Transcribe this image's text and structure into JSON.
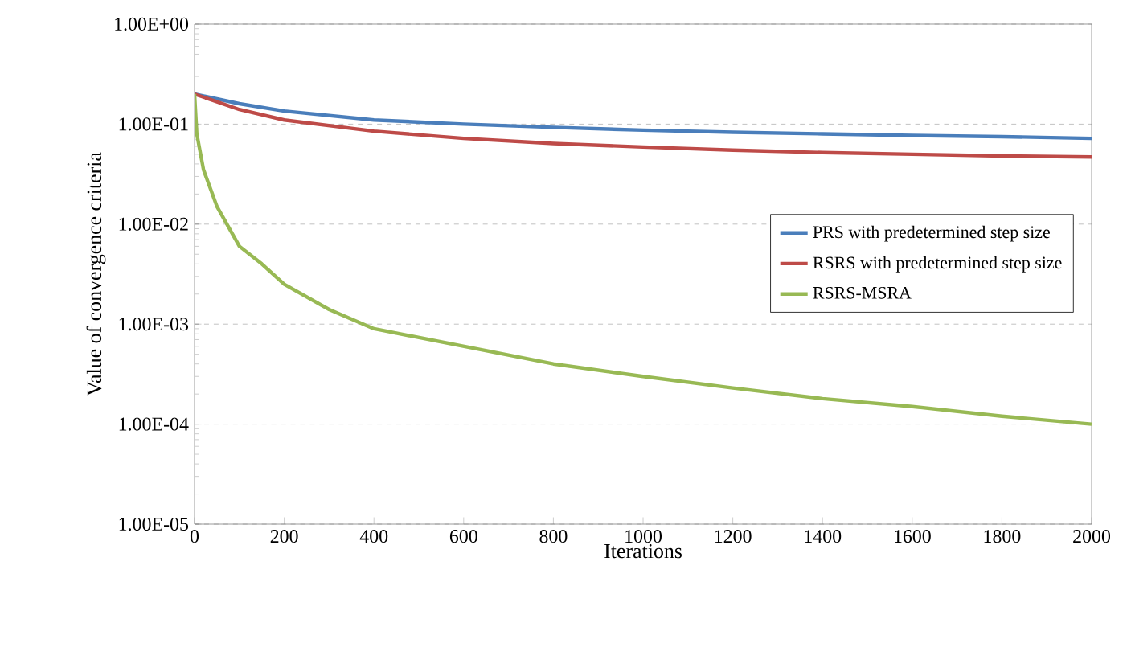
{
  "chart_data": {
    "type": "line",
    "xlabel": "Iterations",
    "ylabel": "Value of convergence criteria",
    "log": "y",
    "grid": "y",
    "legend": "right",
    "marker": "none",
    "line_style": "solid",
    "xlim": [
      0,
      2000
    ],
    "ylim": [
      1e-05,
      1
    ],
    "xticks": [
      0,
      200,
      400,
      600,
      800,
      1000,
      1200,
      1400,
      1600,
      1800,
      2000
    ],
    "yticks": [
      {
        "value": 1e-05,
        "label": "1.00E-05"
      },
      {
        "value": 0.0001,
        "label": "1.00E-04"
      },
      {
        "value": 0.001,
        "label": "1.00E-03"
      },
      {
        "value": 0.01,
        "label": "1.00E-02"
      },
      {
        "value": 0.1,
        "label": "1.00E-01"
      },
      {
        "value": 1,
        "label": "1.00E+00"
      }
    ],
    "series": [
      {
        "name": "PRS with predetermined step size",
        "color": "#4a7ebb",
        "x": [
          0,
          100,
          200,
          400,
          600,
          800,
          1000,
          1200,
          1400,
          1600,
          1800,
          2000
        ],
        "values": [
          0.2,
          0.16,
          0.135,
          0.11,
          0.1,
          0.093,
          0.087,
          0.083,
          0.08,
          0.077,
          0.075,
          0.072
        ]
      },
      {
        "name": "RSRS with predetermined step size",
        "color": "#be4b48",
        "x": [
          0,
          100,
          200,
          400,
          600,
          800,
          1000,
          1200,
          1400,
          1600,
          1800,
          2000
        ],
        "values": [
          0.2,
          0.14,
          0.11,
          0.085,
          0.072,
          0.064,
          0.059,
          0.055,
          0.052,
          0.05,
          0.048,
          0.047
        ]
      },
      {
        "name": "RSRS-MSRA",
        "color": "#98b954",
        "x": [
          0,
          5,
          20,
          50,
          100,
          150,
          200,
          300,
          400,
          600,
          800,
          1000,
          1200,
          1400,
          1600,
          1800,
          2000
        ],
        "values": [
          0.2,
          0.08,
          0.035,
          0.015,
          0.006,
          0.004,
          0.0025,
          0.0014,
          0.0009,
          0.0006,
          0.0004,
          0.0003,
          0.00023,
          0.00018,
          0.00015,
          0.00012,
          0.0001
        ]
      }
    ]
  }
}
